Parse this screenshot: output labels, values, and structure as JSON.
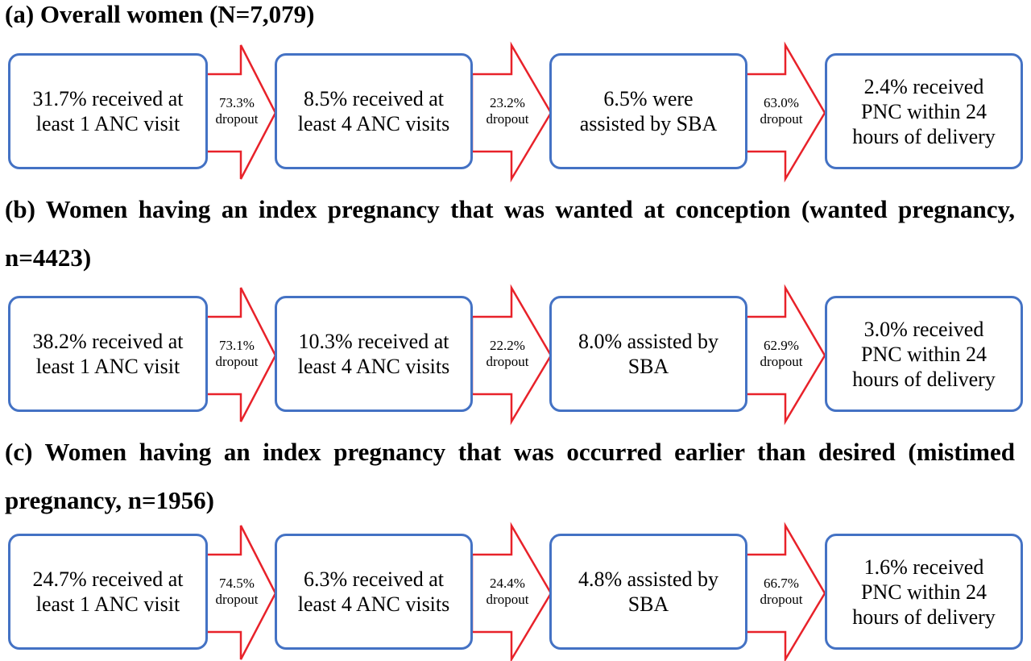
{
  "panels": [
    {
      "heading": "(a) Overall women (N=7,079)",
      "steps": [
        "31.7% received at least 1 ANC visit",
        "8.5% received at least 4 ANC visits",
        "6.5% were assisted by SBA",
        "2.4% received PNC within 24 hours of delivery"
      ],
      "dropouts": [
        "73.3% dropout",
        "23.2% dropout",
        "63.0% dropout"
      ]
    },
    {
      "heading": "(b) Women having an index pregnancy that was wanted at conception (wanted pregnancy, n=4423)",
      "steps": [
        "38.2% received at least 1 ANC visit",
        "10.3% received at least 4 ANC visits",
        "8.0% assisted by SBA",
        "3.0% received PNC within 24 hours of delivery"
      ],
      "dropouts": [
        "73.1% dropout",
        "22.2% dropout",
        "62.9% dropout"
      ]
    },
    {
      "heading": "(c) Women having an index pregnancy that was occurred earlier than desired (mistimed pregnancy, n=1956)",
      "steps": [
        "24.7% received at least 1 ANC visit",
        "6.3% received at least 4 ANC visits",
        "4.8% assisted by SBA",
        "1.6% received PNC within 24 hours of delivery"
      ],
      "dropouts": [
        "74.5% dropout",
        "24.4% dropout",
        "66.7% dropout"
      ]
    }
  ],
  "colors": {
    "box_border": "#4472c4",
    "arrow_stroke": "#e8222a",
    "text": "#000000"
  }
}
